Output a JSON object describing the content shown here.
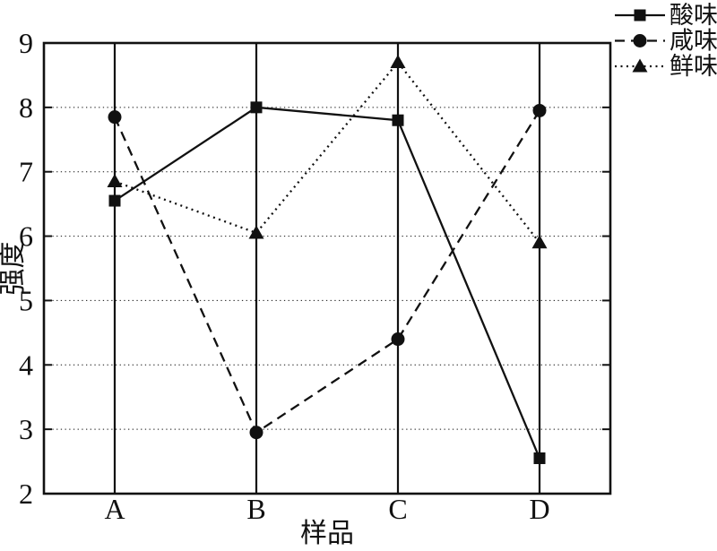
{
  "figure": {
    "background": "#ffffff",
    "ink": "#111111"
  },
  "chart_data": {
    "type": "line",
    "title": "",
    "xlabel": "样品",
    "ylabel": "强度",
    "categories": [
      "A",
      "B",
      "C",
      "D"
    ],
    "series": [
      {
        "name": "酸味",
        "line": "solid",
        "marker": "square",
        "values": [
          6.55,
          8.0,
          7.8,
          2.55
        ]
      },
      {
        "name": "咸味",
        "line": "dashed",
        "marker": "circle",
        "values": [
          7.85,
          2.95,
          4.4,
          7.95
        ]
      },
      {
        "name": "鲜味",
        "line": "dotted",
        "marker": "triangle",
        "values": [
          6.85,
          6.05,
          8.7,
          5.9
        ]
      }
    ],
    "ylim": [
      2,
      9
    ],
    "yticks": [
      2,
      3,
      4,
      5,
      6,
      7,
      8,
      9
    ],
    "grid": {
      "horizontal": "dotted",
      "vertical_category_lines": "solid"
    },
    "legend": {
      "position": "top-right-outside",
      "entries": [
        "酸味",
        "咸味",
        "鲜味"
      ]
    }
  }
}
